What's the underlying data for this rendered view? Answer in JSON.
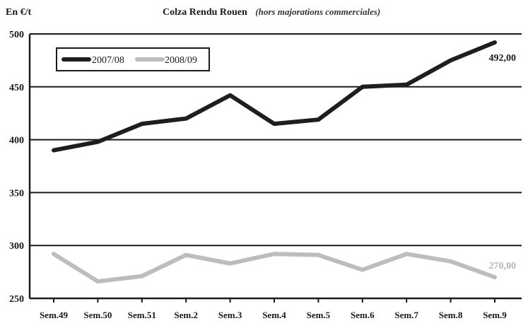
{
  "chart_data": {
    "type": "line",
    "title": "Colza Rendu Rouen",
    "subtitle": "(hors majorations commerciales)",
    "ylabel": "En €/t",
    "xlabel": "",
    "ylim": [
      250,
      500
    ],
    "yticks": [
      250,
      300,
      350,
      400,
      450,
      500
    ],
    "grid": "horizontal",
    "legend_position": "top-left",
    "categories": [
      "Sem.49",
      "Sem.50",
      "Sem.51",
      "Sem.2",
      "Sem.3",
      "Sem.4",
      "Sem.5",
      "Sem.6",
      "Sem.7",
      "Sem.8",
      "Sem.9"
    ],
    "series": [
      {
        "name": "2007/08",
        "color": "#1e1e1e",
        "values": [
          390,
          398,
          415,
          420,
          442,
          415,
          419,
          450,
          452,
          475,
          492
        ],
        "end_label": "492,00"
      },
      {
        "name": "2008/09",
        "color": "#bdbdbd",
        "values": [
          292,
          266,
          271,
          291,
          283,
          292,
          291,
          277,
          292,
          285,
          270
        ],
        "end_label": "270,00"
      }
    ]
  }
}
